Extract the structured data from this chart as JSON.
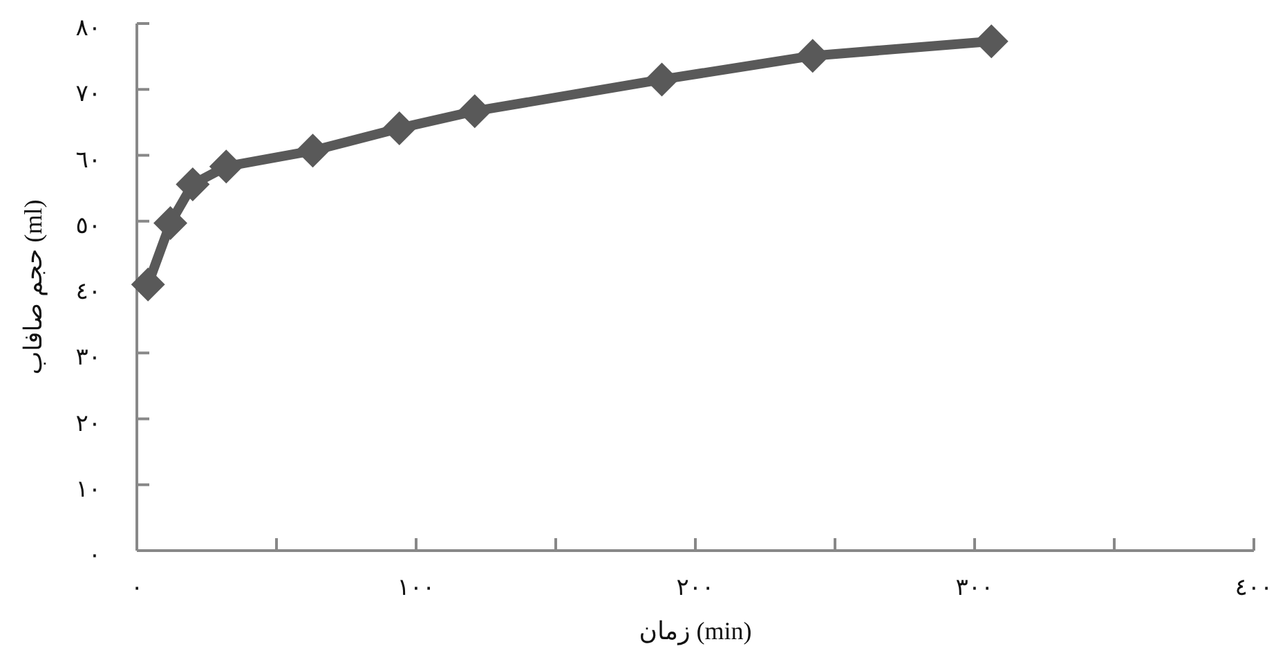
{
  "chart_data": {
    "type": "line",
    "xlabel": "زمان (min)",
    "ylabel": "حجم صافاب (ml)",
    "x": [
      4,
      12,
      20,
      32,
      63,
      94,
      121,
      188,
      242,
      306
    ],
    "series": [
      {
        "color": "#595959",
        "values": [
          40.4,
          49.7,
          55.6,
          58.3,
          60.7,
          64.1,
          66.7,
          71.5,
          75.1,
          77.3
        ]
      }
    ],
    "xlim": [
      0,
      400
    ],
    "xticks": [
      {
        "value": 0,
        "label": "٠"
      },
      {
        "value": 50,
        "label": null
      },
      {
        "value": 100,
        "label": "١٠٠"
      },
      {
        "value": 150,
        "label": null
      },
      {
        "value": 200,
        "label": "٢٠٠"
      },
      {
        "value": 250,
        "label": null
      },
      {
        "value": 300,
        "label": "٣٠٠"
      },
      {
        "value": 350,
        "label": null
      },
      {
        "value": 400,
        "label": "٤٠٠"
      }
    ],
    "ylim": [
      0,
      80
    ],
    "yticks": [
      {
        "value": 0,
        "label": "٠"
      },
      {
        "value": 10,
        "label": "١٠"
      },
      {
        "value": 20,
        "label": "٢٠"
      },
      {
        "value": 30,
        "label": "٣٠"
      },
      {
        "value": 40,
        "label": "٤٠"
      },
      {
        "value": 50,
        "label": "٥٠"
      },
      {
        "value": 60,
        "label": "٦٠"
      },
      {
        "value": 70,
        "label": "٧٠"
      },
      {
        "value": 80,
        "label": "٨٠"
      }
    ],
    "grid": false,
    "marker": "diamond",
    "line_style": "solid"
  }
}
